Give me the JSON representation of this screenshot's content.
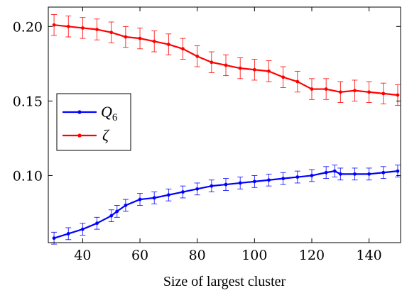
{
  "chart_data": {
    "type": "line",
    "xlabel": "Size of largest cluster",
    "ylabel": "",
    "xlim": [
      28,
      151
    ],
    "ylim": [
      0.055,
      0.213
    ],
    "xticks": [
      40,
      60,
      80,
      100,
      120,
      140
    ],
    "yticks": [
      0.1,
      0.15,
      0.2
    ],
    "ytick_labels": [
      "0.10",
      "0.15",
      "0.20"
    ],
    "grid": false,
    "legend_position": "middle-left",
    "series": [
      {
        "name": "Q",
        "subscript": "6",
        "color": "#0000ff",
        "x": [
          30,
          35,
          40,
          45,
          50,
          52,
          55,
          60,
          65,
          70,
          75,
          80,
          85,
          90,
          95,
          100,
          105,
          110,
          115,
          120,
          125,
          128,
          130,
          135,
          140,
          145,
          150
        ],
        "values": [
          0.058,
          0.061,
          0.064,
          0.068,
          0.073,
          0.076,
          0.08,
          0.084,
          0.085,
          0.087,
          0.089,
          0.091,
          0.093,
          0.094,
          0.095,
          0.096,
          0.097,
          0.098,
          0.099,
          0.1,
          0.102,
          0.103,
          0.101,
          0.101,
          0.101,
          0.102,
          0.103
        ],
        "error": 0.004
      },
      {
        "name": "ζ",
        "color": "#ff0000",
        "x": [
          30,
          35,
          40,
          45,
          50,
          55,
          60,
          65,
          70,
          75,
          80,
          85,
          90,
          95,
          100,
          105,
          110,
          115,
          120,
          125,
          130,
          135,
          140,
          145,
          150
        ],
        "values": [
          0.201,
          0.2,
          0.199,
          0.198,
          0.196,
          0.193,
          0.192,
          0.19,
          0.188,
          0.185,
          0.18,
          0.176,
          0.174,
          0.172,
          0.171,
          0.17,
          0.166,
          0.163,
          0.158,
          0.158,
          0.156,
          0.157,
          0.156,
          0.155,
          0.154
        ],
        "error": 0.007
      }
    ]
  }
}
